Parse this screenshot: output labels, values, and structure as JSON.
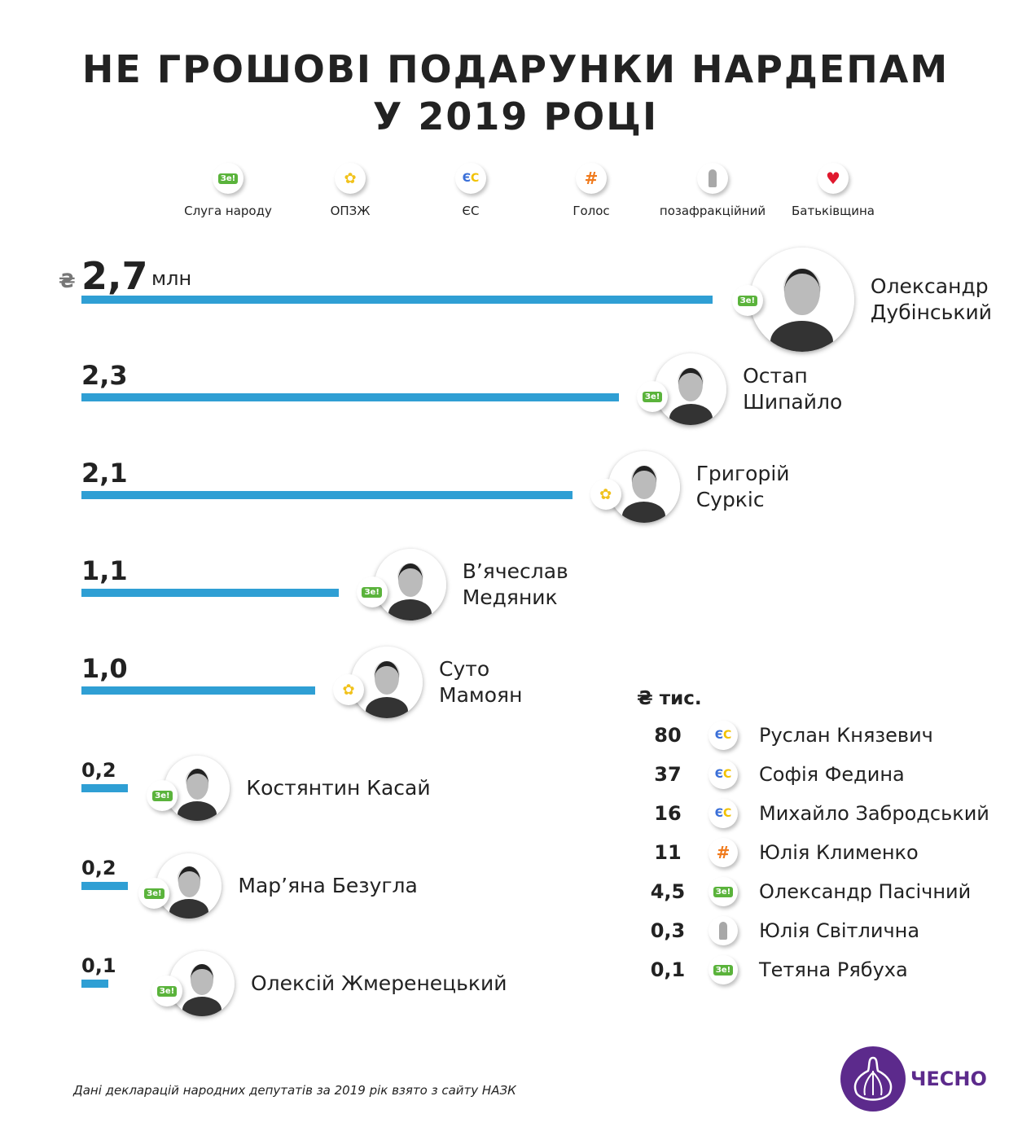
{
  "title": {
    "line1": "НЕ ГРОШОВІ ПОДАРУНКИ НАРДЕПАМ",
    "line2": "У 2019 РОЦІ"
  },
  "legend": [
    {
      "party": "ze",
      "label": "Слуга народу"
    },
    {
      "party": "opzh",
      "label": "ОПЗЖ"
    },
    {
      "party": "es",
      "label": "ЄС"
    },
    {
      "party": "golos",
      "label": "Голос"
    },
    {
      "party": "ind",
      "label": "позафракційний"
    },
    {
      "party": "bat",
      "label": "Батьківщина"
    }
  ],
  "colors": {
    "bar": "#2f9fd4",
    "brand": "#5c2a8c",
    "ze": "#5ab33b"
  },
  "icons": {
    "ze": "Зе!",
    "es_e": "Є",
    "es_c": "С",
    "golos": "#",
    "bat": "♥",
    "opzh": "✿"
  },
  "chart_data": {
    "type": "bar",
    "unit_symbol": "₴",
    "unit": "млн",
    "categories": [
      "Олександр Дубінський",
      "Остап Шипайло",
      "Григорій Суркіс",
      "В’ячеслав Медяник",
      "Суто Мамоян",
      "Костянтин Касай",
      "Мар’яна Безугла",
      "Олексій Жмеренецький"
    ],
    "name_lines": [
      [
        "Олександр",
        "Дубінський"
      ],
      [
        "Остап",
        "Шипайло"
      ],
      [
        "Григорій",
        "Суркіс"
      ],
      [
        "В’ячеслав",
        "Медяник"
      ],
      [
        "Суто",
        "Мамоян"
      ],
      [
        "Костянтин Касай"
      ],
      [
        "Мар’яна Безугла"
      ],
      [
        "Олексій Жмеренецький"
      ]
    ],
    "values": [
      2.7,
      2.3,
      2.1,
      1.1,
      1.0,
      0.2,
      0.2,
      0.1
    ],
    "labels": [
      "2,7",
      "2,3",
      "2,1",
      "1,1",
      "1,0",
      "0,2",
      "0,2",
      "0,1"
    ],
    "parties": [
      "ze",
      "ze",
      "opzh",
      "ze",
      "opzh",
      "ze",
      "ze",
      "ze"
    ]
  },
  "table": {
    "header_symbol": "₴",
    "header": "тис.",
    "rows": [
      {
        "value": "80",
        "party": "es",
        "name": "Руслан Князевич"
      },
      {
        "value": "37",
        "party": "es",
        "name": "Софія Федина"
      },
      {
        "value": "16",
        "party": "es",
        "name": "Михайло Забродський"
      },
      {
        "value": "11",
        "party": "golos",
        "name": "Юлія Клименко"
      },
      {
        "value": "4,5",
        "party": "ze",
        "name": "Олександр Пасічний"
      },
      {
        "value": "0,3",
        "party": "ind",
        "name": "Юлія Світлична"
      },
      {
        "value": "0,1",
        "party": "ze",
        "name": "Тетяна Рябуха"
      }
    ]
  },
  "footer": "Дані декларацій народних депутатів за 2019 рік взято з сайту НАЗК",
  "logo": "ЧЕСНО"
}
